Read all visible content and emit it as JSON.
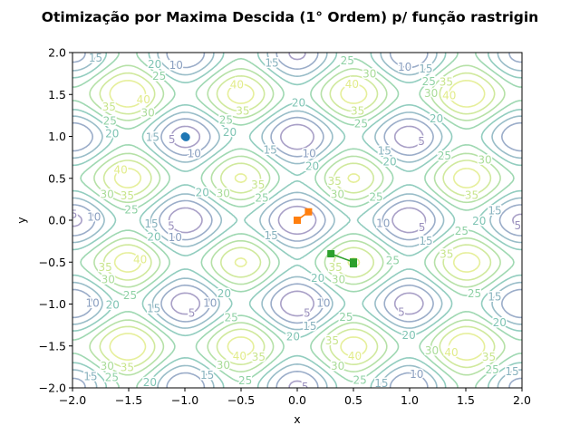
{
  "chart_data": {
    "type": "contour",
    "title": "Otimização por Maxima Descida (1° Ordem) p/ função rastrigin",
    "xlabel": "x",
    "ylabel": "y",
    "xlim": [
      -2,
      2
    ],
    "ylim": [
      -2,
      2
    ],
    "x_ticks": [
      "−2.0",
      "−1.5",
      "−1.0",
      "−0.5",
      "0.0",
      "0.5",
      "1.0",
      "1.5",
      "2.0"
    ],
    "y_ticks": [
      "−2.0",
      "−1.5",
      "−1.0",
      "−0.5",
      "0.0",
      "0.5",
      "1.0",
      "1.5",
      "2.0"
    ],
    "grid": false,
    "function": "rastrigin",
    "contour_levels": [
      5,
      10,
      15,
      20,
      25,
      30,
      35,
      40
    ],
    "level_colors": [
      "#9a8fbd",
      "#8a9fc0",
      "#87b2be",
      "#7fc4b4",
      "#8ed1a4",
      "#a9dc98",
      "#c8e58c",
      "#e2ec8a"
    ],
    "series": [
      {
        "color": "#1f77b4",
        "marker": "o",
        "points": [
          [
            -1.0,
            1.0
          ],
          [
            -0.99,
            0.99
          ]
        ]
      },
      {
        "color": "#ff7f0e",
        "marker": "s",
        "points": [
          [
            0.1,
            0.1
          ],
          [
            0.0,
            0.0
          ],
          [
            0.0,
            0.0
          ]
        ]
      },
      {
        "color": "#2ca02c",
        "marker": "s",
        "points": [
          [
            0.3,
            -0.4
          ],
          [
            0.5,
            -0.5
          ],
          [
            0.5,
            -0.52
          ],
          [
            0.5,
            -0.5
          ]
        ]
      }
    ]
  }
}
